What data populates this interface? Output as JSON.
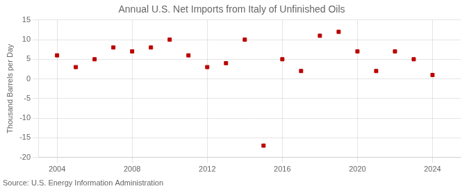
{
  "chart_data": {
    "type": "scatter",
    "title": "Annual U.S. Net Imports from Italy of Unfinished Oils",
    "ylabel": "Thousand Barrels per Day",
    "annotation": "Source: U.S. Energy Information Administration",
    "x": [
      2004,
      2005,
      2006,
      2007,
      2008,
      2009,
      2010,
      2011,
      2012,
      2013,
      2014,
      2015,
      2016,
      2017,
      2018,
      2019,
      2020,
      2021,
      2022,
      2023,
      2024
    ],
    "values": [
      6,
      3,
      5,
      8,
      7,
      8,
      10,
      6,
      3,
      4,
      10,
      -17,
      5,
      2,
      11,
      12,
      7,
      2,
      7,
      5,
      1
    ],
    "color": "#bb0000",
    "marker": "square",
    "xlim": [
      2003,
      2025.5
    ],
    "ylim": [
      -20,
      15
    ],
    "xticks": [
      2004,
      2008,
      2012,
      2016,
      2020,
      2024
    ],
    "yticks": [
      -20,
      -15,
      -10,
      -5,
      0,
      5,
      10,
      15
    ],
    "grid": true
  }
}
